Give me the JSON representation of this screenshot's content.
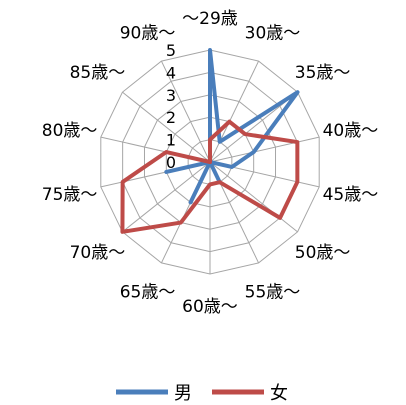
{
  "chart_data": {
    "type": "radar",
    "categories": [
      "～29歳",
      "30歳～",
      "35歳～",
      "40歳～",
      "45歳～",
      "50歳～",
      "55歳～",
      "60歳～",
      "65歳～",
      "70歳～",
      "75歳～",
      "80歳～",
      "85歳～",
      "90歳～"
    ],
    "rlim": [
      0,
      5
    ],
    "ticks": [
      "0",
      "1",
      "2",
      "3",
      "4",
      "5"
    ],
    "grid": true,
    "legend_position": "bottom",
    "series": [
      {
        "name": "男",
        "color": "#4a7ebb",
        "values": [
          5,
          1,
          5,
          2,
          1,
          0,
          1,
          0,
          2,
          0,
          2,
          0,
          0,
          0
        ]
      },
      {
        "name": "女",
        "color": "#be4b48",
        "values": [
          1,
          2,
          2,
          4,
          4,
          4,
          1,
          1,
          3,
          5,
          4,
          2,
          0,
          0
        ]
      }
    ]
  }
}
